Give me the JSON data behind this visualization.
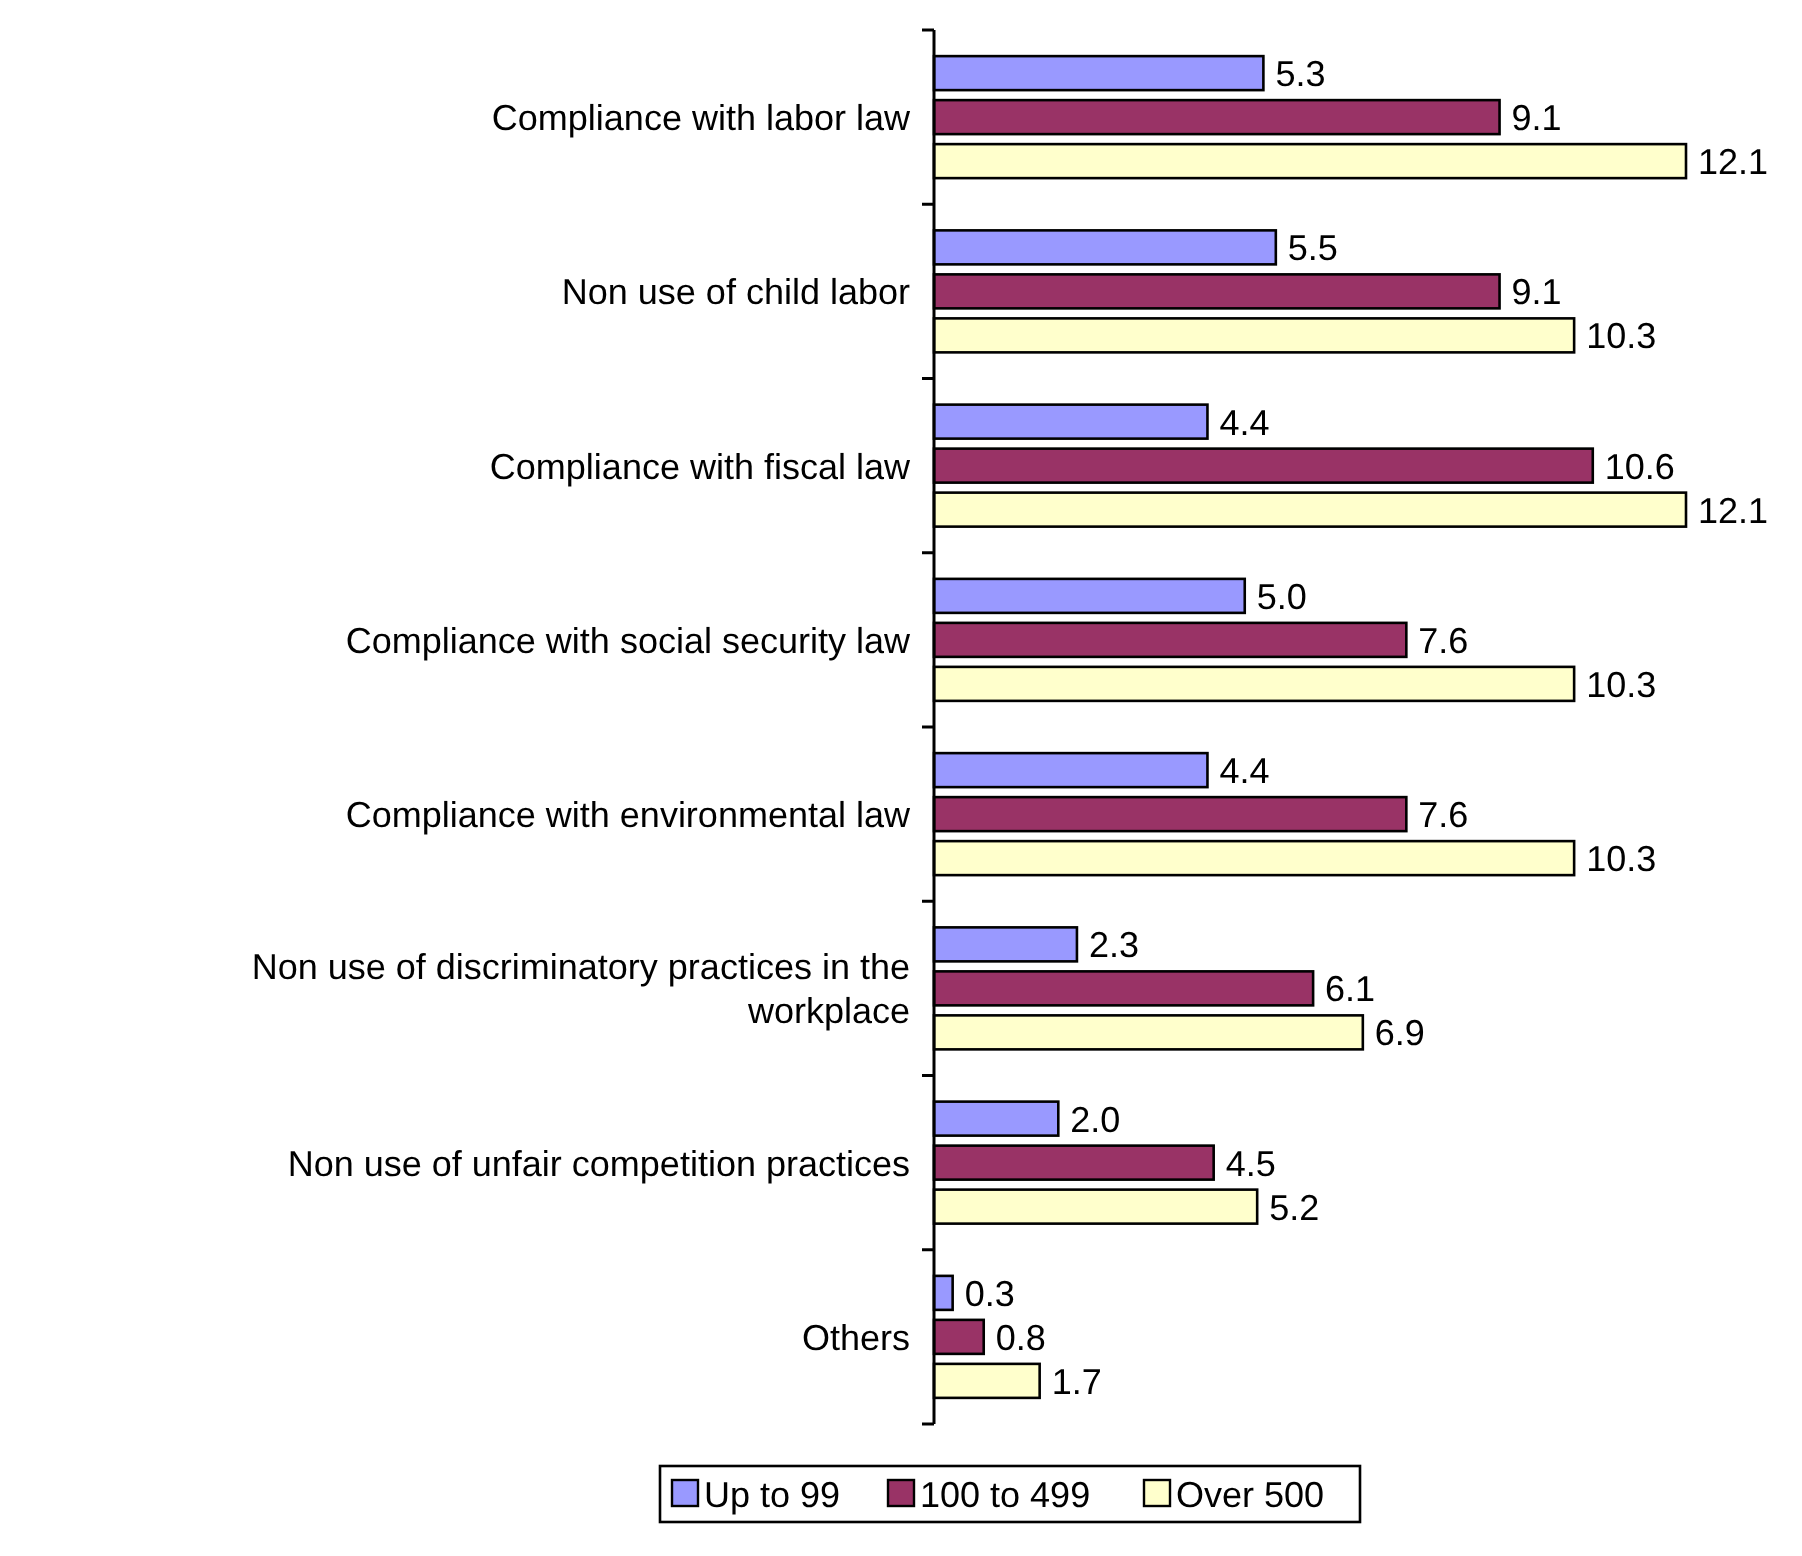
{
  "chart_data": {
    "type": "bar",
    "orientation": "horizontal",
    "categories": [
      "Compliance with labor law",
      "Non use of child labor",
      "Compliance with fiscal law",
      "Compliance with social security law",
      "Compliance with environmental law",
      "Non use of discriminatory practices in the workplace",
      "Non use of unfair competition practices",
      "Others"
    ],
    "series": [
      {
        "name": "Up to 99",
        "color": "#9999ff",
        "values": [
          5.3,
          5.5,
          4.4,
          5.0,
          4.4,
          2.3,
          2.0,
          0.3
        ],
        "value_labels": [
          "5.3",
          "5.5",
          "4.4",
          "5.0",
          "4.4",
          "2.3",
          "2.0",
          "0.3"
        ]
      },
      {
        "name": "100 to 499",
        "color": "#993366",
        "values": [
          9.1,
          9.1,
          10.6,
          7.6,
          7.6,
          6.1,
          4.5,
          0.8
        ],
        "value_labels": [
          "9.1",
          "9.1",
          "10.6",
          "7.6",
          "7.6",
          "6.1",
          "4.5",
          "0.8"
        ]
      },
      {
        "name": "Over 500",
        "color": "#ffffcc",
        "values": [
          12.1,
          10.3,
          12.1,
          10.3,
          10.3,
          6.9,
          5.2,
          1.7
        ],
        "value_labels": [
          "12.1",
          "10.3",
          "12.1",
          "10.3",
          "10.3",
          "6.9",
          "5.2",
          "1.7"
        ]
      }
    ],
    "legend": "bottom"
  }
}
